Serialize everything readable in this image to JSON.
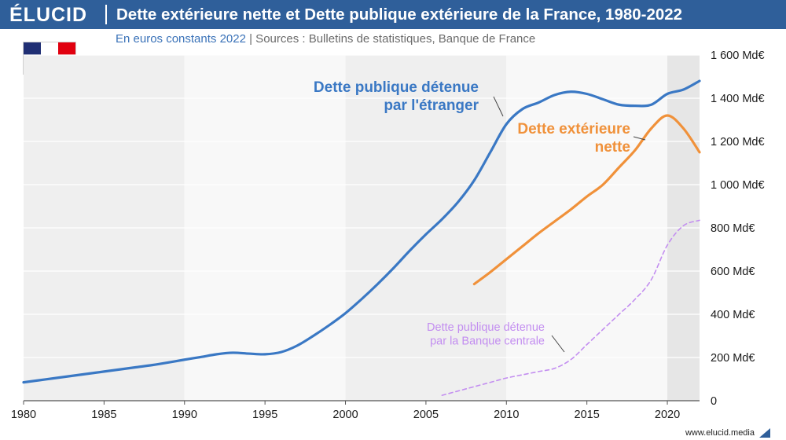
{
  "header": {
    "logo": "ÉLUCID",
    "title": "Dette extérieure nette et Dette publique extérieure de la France, 1980-2022"
  },
  "subtitle": {
    "units": "En euros constants 2022",
    "sources": " |  Sources : Bulletins de statistiques, Banque de France"
  },
  "footer": {
    "url": "www.elucid.media"
  },
  "colors": {
    "header_bg": "#2f5f9a",
    "public_debt": "#3a78c4",
    "net_debt": "#f0913a",
    "central_bank": "#c38ef0"
  },
  "chart_data": {
    "type": "line",
    "xlim": [
      1980,
      2022
    ],
    "ylim": [
      0,
      1600
    ],
    "x_ticks": [
      1980,
      1985,
      1990,
      1995,
      2000,
      2005,
      2010,
      2015,
      2020
    ],
    "y_ticks": [
      {
        "value": 0,
        "label": "0"
      },
      {
        "value": 200,
        "label": "200 Md€"
      },
      {
        "value": 400,
        "label": "400 Md€"
      },
      {
        "value": 600,
        "label": "600 Md€"
      },
      {
        "value": 800,
        "label": "800 Md€"
      },
      {
        "value": 1000,
        "label": "1 000 Md€"
      },
      {
        "value": 1200,
        "label": "1 200 Md€"
      },
      {
        "value": 1400,
        "label": "1 400 Md€"
      },
      {
        "value": 1600,
        "label": "1 600 Md€"
      }
    ],
    "grid": true,
    "series": [
      {
        "name": "Dette publique détenue par l'étranger",
        "label_lines": [
          "Dette publique détenue",
          "par l'étranger"
        ],
        "color": "#3a78c4",
        "style": "solid",
        "x": [
          1980,
          1981,
          1982,
          1983,
          1984,
          1985,
          1986,
          1987,
          1988,
          1989,
          1990,
          1991,
          1992,
          1993,
          1994,
          1995,
          1996,
          1997,
          1998,
          1999,
          2000,
          2001,
          2002,
          2003,
          2004,
          2005,
          2006,
          2007,
          2008,
          2009,
          2010,
          2011,
          2012,
          2013,
          2014,
          2015,
          2016,
          2017,
          2018,
          2019,
          2020,
          2021,
          2022
        ],
        "y": [
          85,
          95,
          105,
          115,
          125,
          135,
          145,
          155,
          165,
          177,
          190,
          202,
          215,
          222,
          218,
          215,
          225,
          255,
          300,
          350,
          405,
          470,
          540,
          615,
          695,
          770,
          840,
          920,
          1020,
          1150,
          1280,
          1350,
          1380,
          1415,
          1430,
          1420,
          1395,
          1370,
          1365,
          1370,
          1420,
          1440,
          1480
        ]
      },
      {
        "name": "Dette extérieure nette",
        "label_lines": [
          "Dette extérieure",
          "nette"
        ],
        "color": "#f0913a",
        "style": "solid",
        "x": [
          2008,
          2009,
          2010,
          2011,
          2012,
          2013,
          2014,
          2015,
          2016,
          2017,
          2018,
          2019,
          2020,
          2021,
          2022
        ],
        "y": [
          540,
          595,
          655,
          715,
          775,
          830,
          885,
          945,
          1000,
          1080,
          1160,
          1260,
          1320,
          1260,
          1150
        ]
      },
      {
        "name": "Dette publique détenue par la Banque centrale",
        "label_lines": [
          "Dette publique détenue",
          "par la Banque centrale"
        ],
        "color": "#c38ef0",
        "style": "dashed",
        "x": [
          2006,
          2007,
          2008,
          2009,
          2010,
          2011,
          2012,
          2013,
          2014,
          2015,
          2016,
          2017,
          2018,
          2019,
          2020,
          2021,
          2022
        ],
        "y": [
          25,
          45,
          65,
          85,
          105,
          120,
          135,
          150,
          190,
          260,
          330,
          400,
          470,
          560,
          720,
          810,
          835
        ]
      }
    ]
  }
}
